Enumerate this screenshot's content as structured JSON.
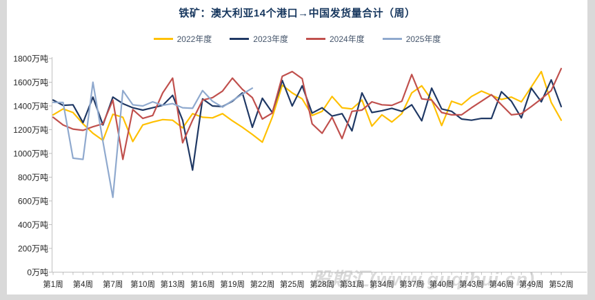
{
  "window": {
    "bg": "#FFFFFF",
    "frame_color": "#D9D9D9"
  },
  "chart_data": {
    "type": "line",
    "title": "铁矿：澳大利亚14个港口→中国发货量合计（周）",
    "title_color": "#17375E",
    "watermark": "股期汇(www.guqihui.cn)",
    "legend_position": "top",
    "grid": "off",
    "x_axis": {
      "weeks": 52,
      "tick_label_every": 3,
      "tick_labels": [
        "第1周",
        "第4周",
        "第7周",
        "第10周",
        "第13周",
        "第16周",
        "第19周",
        "第22周",
        "第25周",
        "第28周",
        "第31周",
        "第34周",
        "第37周",
        "第40周",
        "第43周",
        "第46周",
        "第49周",
        "第52周"
      ]
    },
    "y_axis": {
      "min": 0,
      "max": 1800,
      "step": 200,
      "unit": "万吨",
      "tick_labels": [
        "0万吨",
        "200万吨",
        "400万吨",
        "600万吨",
        "800万吨",
        "1000万吨",
        "1200万吨",
        "1400万吨",
        "1600万吨",
        "1800万吨"
      ]
    },
    "series": [
      {
        "name": "2022年度",
        "color": "#FFC000",
        "values": [
          1325,
          1375,
          1345,
          1250,
          1170,
          1110,
          1330,
          1305,
          1100,
          1240,
          1265,
          1285,
          1280,
          1215,
          1335,
          1305,
          1300,
          1335,
          1275,
          1220,
          1160,
          1095,
          1305,
          1575,
          1510,
          1460,
          1320,
          1355,
          1480,
          1385,
          1375,
          1450,
          1230,
          1325,
          1265,
          1335,
          1510,
          1570,
          1450,
          1235,
          1440,
          1410,
          1480,
          1525,
          1490,
          1455,
          1475,
          1435,
          1560,
          1690,
          1430,
          1280
        ]
      },
      {
        "name": "2023年度",
        "color": "#1F3864",
        "values": [
          1450,
          1405,
          1410,
          1260,
          1475,
          1240,
          1475,
          1420,
          1385,
          1365,
          1385,
          1405,
          1490,
          1280,
          860,
          1460,
          1400,
          1395,
          1440,
          1510,
          1220,
          1465,
          1345,
          1615,
          1400,
          1570,
          1340,
          1385,
          1315,
          1335,
          1190,
          1510,
          1345,
          1360,
          1380,
          1355,
          1410,
          1275,
          1550,
          1375,
          1355,
          1290,
          1280,
          1295,
          1295,
          1520,
          1440,
          1300,
          1550,
          1435,
          1620,
          1395
        ]
      },
      {
        "name": "2024年度",
        "color": "#C0504D",
        "values": [
          1305,
          1240,
          1205,
          1195,
          1225,
          1250,
          1450,
          950,
          1370,
          1295,
          1320,
          1510,
          1635,
          1090,
          1280,
          1450,
          1470,
          1525,
          1635,
          1540,
          1470,
          1290,
          1340,
          1650,
          1690,
          1630,
          1250,
          1170,
          1305,
          1125,
          1355,
          1365,
          1435,
          1410,
          1405,
          1440,
          1665,
          1460,
          1450,
          1345,
          1325,
          1325,
          1385,
          1440,
          1495,
          1410,
          1325,
          1335,
          1395,
          1460,
          1530,
          1715
        ]
      },
      {
        "name": "2025年度",
        "color": "#8FA9CE",
        "values": [
          1430,
          1430,
          960,
          950,
          1600,
          1100,
          630,
          1530,
          1410,
          1400,
          1435,
          1405,
          1420,
          1385,
          1380,
          1530,
          1440,
          1390,
          1445,
          1500,
          1550
        ]
      }
    ]
  }
}
